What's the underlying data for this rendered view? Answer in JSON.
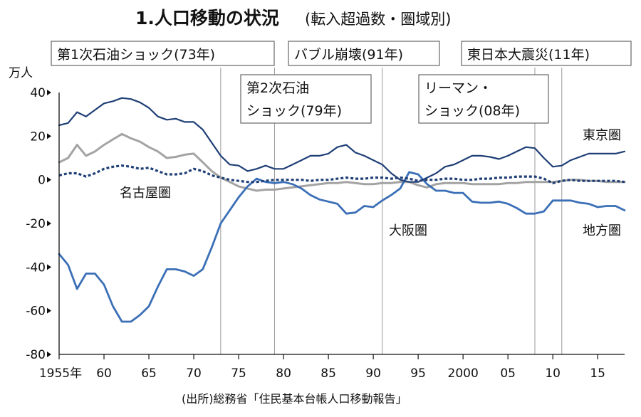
{
  "chart_data": {
    "type": "line",
    "title": "1.人口移動の状況",
    "subtitle": "(転入超過数・圏域別)",
    "ylabel": "万人",
    "source": "(出所)総務省「住民基本台帳人口移動報告」",
    "xlim": [
      1955,
      2018
    ],
    "ylim": [
      -80,
      40
    ],
    "yticks": [
      40,
      20,
      0,
      -20,
      -40,
      -60,
      -80
    ],
    "xticks": [
      {
        "value": 1955,
        "label": "1955年"
      },
      {
        "value": 1960,
        "label": "60"
      },
      {
        "value": 1965,
        "label": "65"
      },
      {
        "value": 1970,
        "label": "70"
      },
      {
        "value": 1975,
        "label": "75"
      },
      {
        "value": 1980,
        "label": "80"
      },
      {
        "value": 1985,
        "label": "85"
      },
      {
        "value": 1990,
        "label": "90"
      },
      {
        "value": 1995,
        "label": "95"
      },
      {
        "value": 2000,
        "label": "2000"
      },
      {
        "value": 2005,
        "label": "05"
      },
      {
        "value": 2010,
        "label": "10"
      },
      {
        "value": 2015,
        "label": "15"
      }
    ],
    "grid": false,
    "x": [
      1955,
      1956,
      1957,
      1958,
      1959,
      1960,
      1961,
      1962,
      1963,
      1964,
      1965,
      1966,
      1967,
      1968,
      1969,
      1970,
      1971,
      1972,
      1973,
      1974,
      1975,
      1976,
      1977,
      1978,
      1979,
      1980,
      1981,
      1982,
      1983,
      1984,
      1985,
      1986,
      1987,
      1988,
      1989,
      1990,
      1991,
      1992,
      1993,
      1994,
      1995,
      1996,
      1997,
      1998,
      1999,
      2000,
      2001,
      2002,
      2003,
      2004,
      2005,
      2006,
      2007,
      2008,
      2009,
      2010,
      2011,
      2012,
      2013,
      2014,
      2015,
      2016,
      2017,
      2018
    ],
    "series": [
      {
        "name": "東京圏",
        "color": "#1f3f76",
        "style": "solid",
        "width": 2.2,
        "values": [
          25,
          26,
          31,
          29,
          32,
          35,
          36,
          37.5,
          37,
          35.5,
          33,
          29,
          27.5,
          28,
          26.5,
          26.5,
          23,
          17,
          11,
          7,
          6.5,
          4,
          5,
          6.5,
          5,
          5,
          7,
          9,
          11,
          11,
          12,
          15,
          16,
          12.5,
          11,
          9,
          7,
          3,
          0,
          -1,
          -1,
          1,
          3,
          6,
          7,
          9,
          11,
          11,
          10.5,
          9.5,
          11,
          13,
          15,
          14.5,
          10,
          6,
          6.5,
          9,
          10.5,
          12,
          12,
          12,
          12,
          13
        ]
      },
      {
        "name": "地方圏",
        "color": "#3b6fb6",
        "style": "solid",
        "width": 2.8,
        "values": [
          -34,
          -39,
          -50,
          -43,
          -43,
          -48,
          -58,
          -65,
          -65,
          -62,
          -58,
          -49,
          -41,
          -41,
          -42,
          -44,
          -41,
          -31,
          -20,
          -14,
          -8,
          -3,
          0.5,
          -1,
          -1.5,
          -1,
          -2,
          -4,
          -7,
          -9,
          -10,
          -11,
          -15.5,
          -15,
          -12,
          -12.5,
          -9.5,
          -7,
          -4,
          3.5,
          2.5,
          -2,
          -5,
          -5,
          -6,
          -6,
          -10,
          -10.5,
          -10.5,
          -10,
          -11,
          -13,
          -15.5,
          -15.5,
          -14.5,
          -9.5,
          -9.5,
          -9.5,
          -10.5,
          -11,
          -12.5,
          -12,
          -12,
          -14
        ]
      },
      {
        "name": "大阪圏",
        "color": "#a3a3a3",
        "style": "solid",
        "width": 3.0,
        "values": [
          8,
          10,
          16,
          11,
          13,
          16,
          18.5,
          21,
          19,
          17.5,
          15,
          13,
          10,
          10.5,
          11.5,
          12,
          8,
          4,
          1,
          -1,
          -3,
          -4,
          -5,
          -4.5,
          -4.5,
          -4,
          -3.5,
          -3,
          -2.5,
          -2,
          -1.5,
          -1.5,
          -1,
          -1.5,
          -2,
          -2,
          -1.5,
          -1.5,
          -1,
          -1,
          -2.5,
          -3.5,
          -2,
          -1.5,
          -1.5,
          -1.5,
          -2,
          -2,
          -2,
          -2,
          -1.5,
          -1.5,
          -1,
          -1,
          -1,
          -1,
          -0.5,
          0,
          0,
          -0.5,
          -0.5,
          -1,
          -1,
          -1
        ]
      },
      {
        "name": "名古屋圏",
        "color": "#1f3f76",
        "style": "dashed",
        "width": 3.2,
        "values": [
          2,
          3,
          3,
          1.5,
          3,
          5,
          6,
          6.5,
          6,
          5,
          5.5,
          4,
          2.5,
          2.5,
          3,
          5,
          4,
          2,
          1,
          0,
          -0.5,
          -1,
          -1,
          -0.5,
          0,
          0,
          0,
          0,
          -0.5,
          0,
          0,
          0.5,
          1,
          0.5,
          0.5,
          1,
          1,
          0.5,
          1,
          0.5,
          -0.5,
          0,
          0,
          0.5,
          0.5,
          0,
          0,
          0.5,
          0.5,
          1,
          1,
          1.5,
          1.5,
          1.5,
          0.5,
          -1.5,
          -0.5,
          0,
          -0.5,
          -0.5,
          -0.5,
          -0.5,
          -0.5,
          -1
        ]
      }
    ],
    "events": [
      {
        "year": 1973,
        "label": "第1次石油ショック(73年)"
      },
      {
        "year": 1979,
        "label": "第2次石油",
        "label2": "ショック(79年)"
      },
      {
        "year": 1991,
        "label": "バブル崩壊(91年)"
      },
      {
        "year": 2008,
        "label": "リーマン・",
        "label2": "ショック(08年)"
      },
      {
        "year": 2011,
        "label": "東日本大震災(11年)"
      }
    ]
  }
}
